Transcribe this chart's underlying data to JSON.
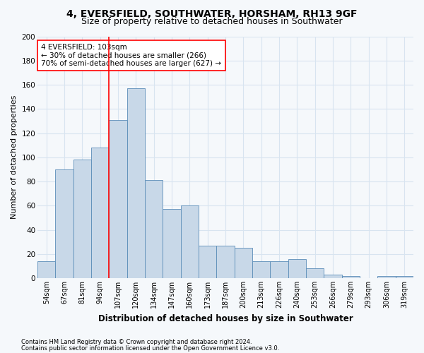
{
  "title1": "4, EVERSFIELD, SOUTHWATER, HORSHAM, RH13 9GF",
  "title2": "Size of property relative to detached houses in Southwater",
  "xlabel": "Distribution of detached houses by size in Southwater",
  "ylabel": "Number of detached properties",
  "categories": [
    "54sqm",
    "67sqm",
    "81sqm",
    "94sqm",
    "107sqm",
    "120sqm",
    "134sqm",
    "147sqm",
    "160sqm",
    "173sqm",
    "187sqm",
    "200sqm",
    "213sqm",
    "226sqm",
    "240sqm",
    "253sqm",
    "266sqm",
    "279sqm",
    "293sqm",
    "306sqm",
    "319sqm"
  ],
  "values": [
    14,
    90,
    98,
    108,
    131,
    157,
    81,
    57,
    60,
    27,
    27,
    25,
    14,
    14,
    16,
    8,
    3,
    2,
    0,
    2,
    2
  ],
  "bar_color": "#c8d8e8",
  "bar_edge_color": "#5b8db8",
  "vline_x_index": 4,
  "vline_color": "red",
  "annotation_text": "4 EVERSFIELD: 103sqm\n← 30% of detached houses are smaller (266)\n70% of semi-detached houses are larger (627) →",
  "annotation_box_color": "white",
  "annotation_box_edge_color": "red",
  "ylim": [
    0,
    200
  ],
  "yticks": [
    0,
    20,
    40,
    60,
    80,
    100,
    120,
    140,
    160,
    180,
    200
  ],
  "footnote1": "Contains HM Land Registry data © Crown copyright and database right 2024.",
  "footnote2": "Contains public sector information licensed under the Open Government Licence v3.0.",
  "bg_color": "#f5f8fb",
  "grid_color": "#d8e4f0",
  "title_fontsize": 10,
  "subtitle_fontsize": 9,
  "tick_fontsize": 7,
  "xlabel_fontsize": 8.5,
  "ylabel_fontsize": 8,
  "annotation_fontsize": 7.5,
  "footnote_fontsize": 6
}
